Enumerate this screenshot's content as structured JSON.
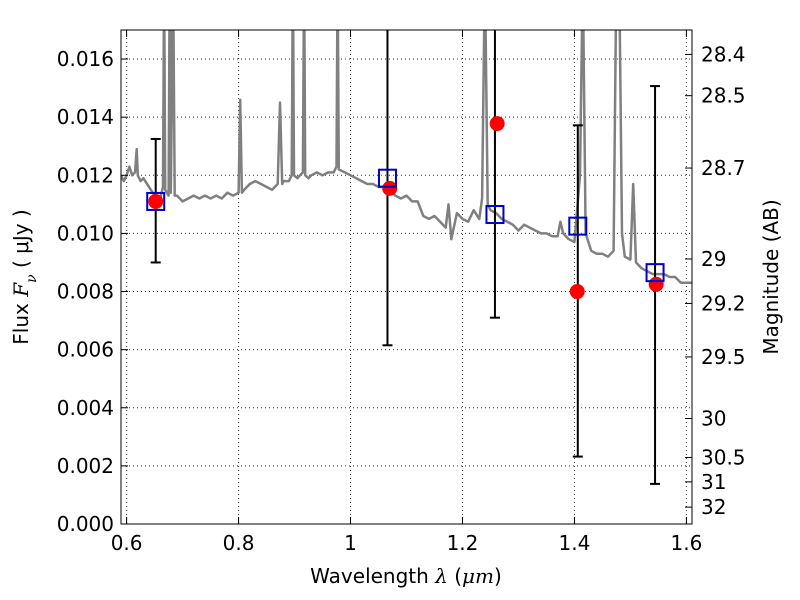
{
  "chart_data": {
    "type": "scatter",
    "xlabel": {
      "prefix": "Wavelength ",
      "symbol": "λ",
      "unit_open": " (",
      "unit": "μm",
      "unit_close": ")"
    },
    "ylabel": {
      "prefix": "Flux ",
      "symbol": "F",
      "subscript": "ν",
      "unit": " ( μJy )"
    },
    "y2label": "Magnitude (AB)",
    "xlim": [
      0.59,
      1.61
    ],
    "ylim": [
      0.0,
      0.017
    ],
    "grid": true,
    "x_ticks": [
      0.6,
      0.8,
      1.0,
      1.2,
      1.4,
      1.6
    ],
    "x_tick_labels": [
      "0.6",
      "0.8",
      "1",
      "1.2",
      "1.4",
      "1.6"
    ],
    "y_ticks": [
      0.0,
      0.002,
      0.004,
      0.006,
      0.008,
      0.01,
      0.012,
      0.014,
      0.016
    ],
    "y_tick_labels": [
      "0.000",
      "0.002",
      "0.004",
      "0.006",
      "0.008",
      "0.010",
      "0.012",
      "0.014",
      "0.016"
    ],
    "y2_ticks": [
      {
        "flux": 0.01616,
        "label": "28.4"
      },
      {
        "flux": 0.01474,
        "label": "28.5"
      },
      {
        "flux": 0.01225,
        "label": "28.7"
      },
      {
        "flux": 0.00912,
        "label": "29"
      },
      {
        "flux": 0.00759,
        "label": "29.2"
      },
      {
        "flux": 0.00575,
        "label": "29.5"
      },
      {
        "flux": 0.00363,
        "label": "30"
      },
      {
        "flux": 0.00229,
        "label": "30.5"
      },
      {
        "flux": 0.00145,
        "label": "31"
      },
      {
        "flux": 0.00058,
        "label": "32"
      }
    ],
    "series": [
      {
        "type": "line",
        "color": "#808080",
        "points": [
          [
            0.59,
            0.012
          ],
          [
            0.595,
            0.0118
          ],
          [
            0.6,
            0.012
          ],
          [
            0.605,
            0.0123
          ],
          [
            0.61,
            0.012
          ],
          [
            0.615,
            0.0121
          ],
          [
            0.618,
            0.0129
          ],
          [
            0.62,
            0.012
          ],
          [
            0.625,
            0.0118
          ],
          [
            0.63,
            0.0119
          ],
          [
            0.64,
            0.0116
          ],
          [
            0.65,
            0.0113
          ],
          [
            0.66,
            0.0112
          ],
          [
            0.665,
            0.0116
          ],
          [
            0.667,
            0.019
          ],
          [
            0.669,
            0.0115
          ],
          [
            0.675,
            0.0113
          ],
          [
            0.677,
            0.019
          ],
          [
            0.679,
            0.0114
          ],
          [
            0.683,
            0.019
          ],
          [
            0.686,
            0.0113
          ],
          [
            0.69,
            0.0113
          ],
          [
            0.7,
            0.0111
          ],
          [
            0.71,
            0.0112
          ],
          [
            0.72,
            0.0113
          ],
          [
            0.73,
            0.0112
          ],
          [
            0.74,
            0.0113
          ],
          [
            0.75,
            0.0112
          ],
          [
            0.76,
            0.0113
          ],
          [
            0.77,
            0.0112
          ],
          [
            0.78,
            0.0114
          ],
          [
            0.79,
            0.0113
          ],
          [
            0.8,
            0.0114
          ],
          [
            0.803,
            0.0146
          ],
          [
            0.806,
            0.0114
          ],
          [
            0.81,
            0.0115
          ],
          [
            0.82,
            0.0117
          ],
          [
            0.83,
            0.0118
          ],
          [
            0.84,
            0.0117
          ],
          [
            0.85,
            0.0116
          ],
          [
            0.86,
            0.0115
          ],
          [
            0.87,
            0.0117
          ],
          [
            0.874,
            0.0145
          ],
          [
            0.878,
            0.0117
          ],
          [
            0.88,
            0.0118
          ],
          [
            0.89,
            0.0118
          ],
          [
            0.895,
            0.012
          ],
          [
            0.897,
            0.019
          ],
          [
            0.899,
            0.012
          ],
          [
            0.905,
            0.0119
          ],
          [
            0.91,
            0.012
          ],
          [
            0.915,
            0.0121
          ],
          [
            0.917,
            0.019
          ],
          [
            0.919,
            0.012
          ],
          [
            0.925,
            0.0119
          ],
          [
            0.93,
            0.012
          ],
          [
            0.94,
            0.0121
          ],
          [
            0.95,
            0.012
          ],
          [
            0.96,
            0.0121
          ],
          [
            0.97,
            0.0121
          ],
          [
            0.975,
            0.0123
          ],
          [
            0.977,
            0.019
          ],
          [
            0.979,
            0.0122
          ],
          [
            0.99,
            0.0121
          ],
          [
            1.0,
            0.012
          ],
          [
            1.01,
            0.0119
          ],
          [
            1.02,
            0.0118
          ],
          [
            1.03,
            0.0117
          ],
          [
            1.04,
            0.0117
          ],
          [
            1.05,
            0.0116
          ],
          [
            1.06,
            0.0116
          ],
          [
            1.07,
            0.0115
          ],
          [
            1.08,
            0.0113
          ],
          [
            1.09,
            0.0112
          ],
          [
            1.1,
            0.0113
          ],
          [
            1.11,
            0.0111
          ],
          [
            1.12,
            0.0111
          ],
          [
            1.13,
            0.0106
          ],
          [
            1.14,
            0.0105
          ],
          [
            1.15,
            0.0106
          ],
          [
            1.16,
            0.0104
          ],
          [
            1.17,
            0.0102
          ],
          [
            1.175,
            0.011
          ],
          [
            1.18,
            0.0098
          ],
          [
            1.19,
            0.0107
          ],
          [
            1.2,
            0.0105
          ],
          [
            1.21,
            0.0104
          ],
          [
            1.22,
            0.0108
          ],
          [
            1.23,
            0.0105
          ],
          [
            1.235,
            0.0112
          ],
          [
            1.24,
            0.019
          ],
          [
            1.245,
            0.011
          ],
          [
            1.25,
            0.0108
          ],
          [
            1.26,
            0.0107
          ],
          [
            1.27,
            0.0105
          ],
          [
            1.28,
            0.0104
          ],
          [
            1.29,
            0.0103
          ],
          [
            1.3,
            0.0101
          ],
          [
            1.31,
            0.0103
          ],
          [
            1.32,
            0.0102
          ],
          [
            1.33,
            0.0101
          ],
          [
            1.34,
            0.01
          ],
          [
            1.35,
            0.01
          ],
          [
            1.36,
            0.0099
          ],
          [
            1.37,
            0.0099
          ],
          [
            1.375,
            0.0104
          ],
          [
            1.38,
            0.01
          ],
          [
            1.39,
            0.0098
          ],
          [
            1.4,
            0.0097
          ],
          [
            1.41,
            0.012
          ],
          [
            1.415,
            0.019
          ],
          [
            1.42,
            0.01
          ],
          [
            1.43,
            0.0094
          ],
          [
            1.44,
            0.0093
          ],
          [
            1.45,
            0.0093
          ],
          [
            1.46,
            0.0092
          ],
          [
            1.47,
            0.0094
          ],
          [
            1.475,
            0.019
          ],
          [
            1.48,
            0.019
          ],
          [
            1.485,
            0.01
          ],
          [
            1.49,
            0.0092
          ],
          [
            1.5,
            0.0091
          ],
          [
            1.505,
            0.0117
          ],
          [
            1.51,
            0.009
          ],
          [
            1.52,
            0.0088
          ],
          [
            1.53,
            0.0087
          ],
          [
            1.54,
            0.0086
          ],
          [
            1.55,
            0.0086
          ],
          [
            1.56,
            0.0086
          ],
          [
            1.57,
            0.0085
          ],
          [
            1.58,
            0.0085
          ],
          [
            1.59,
            0.0083
          ],
          [
            1.6,
            0.0083
          ],
          [
            1.61,
            0.0083
          ]
        ]
      },
      {
        "type": "points",
        "marker": "circle",
        "color": "#ff0000",
        "points": [
          {
            "x": 0.652,
            "y": 0.0111
          },
          {
            "x": 1.07,
            "y": 0.01155
          },
          {
            "x": 1.262,
            "y": 0.01378
          },
          {
            "x": 1.405,
            "y": 0.008
          },
          {
            "x": 1.546,
            "y": 0.00825
          }
        ]
      },
      {
        "type": "errorbar",
        "marker": "square",
        "color": "#0000cc",
        "err_color": "#000000",
        "points": [
          {
            "x": 0.652,
            "y": 0.0111,
            "ylow": 0.009,
            "yhigh": 0.01325
          },
          {
            "x": 1.066,
            "y": 0.0119,
            "ylow": 0.00615,
            "yhigh": 0.0175
          },
          {
            "x": 1.258,
            "y": 0.01065,
            "ylow": 0.0071,
            "yhigh": 0.0175
          },
          {
            "x": 1.406,
            "y": 0.01025,
            "ylow": 0.00232,
            "yhigh": 0.01372
          },
          {
            "x": 1.544,
            "y": 0.00865,
            "ylow": 0.00138,
            "yhigh": 0.01507
          }
        ]
      }
    ]
  }
}
